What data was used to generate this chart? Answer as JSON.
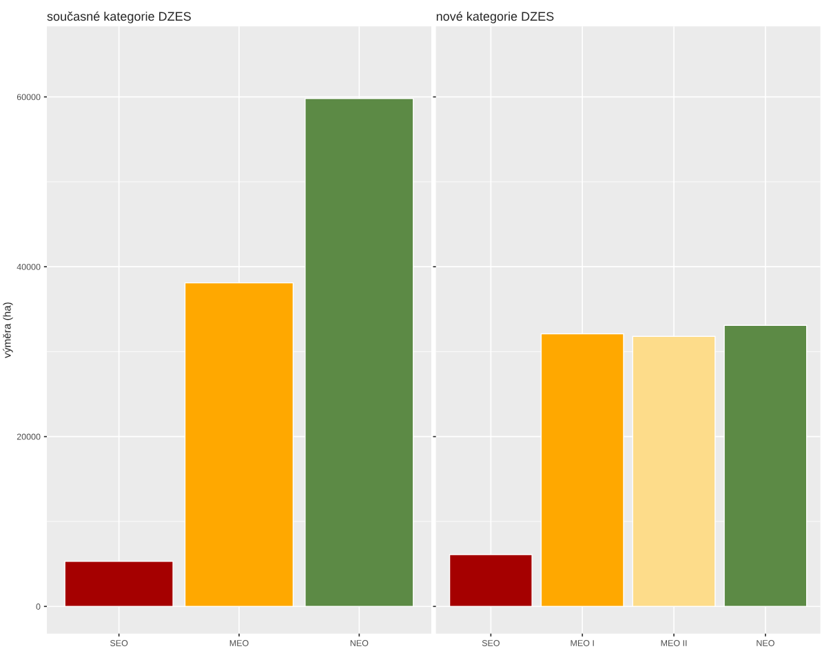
{
  "chart_data": [
    {
      "type": "bar",
      "title": "současné kategorie DZES",
      "ylabel": "výměra (ha)",
      "categories": [
        "SEO",
        "MEO",
        "NEO"
      ],
      "values": [
        5300,
        38100,
        59800
      ],
      "colors": [
        "#a50000",
        "#ffa800",
        "#5c8a45"
      ],
      "ylim": [
        -3200,
        68300
      ],
      "yticks": [
        0,
        20000,
        40000,
        60000
      ],
      "grid": true
    },
    {
      "type": "bar",
      "title": "nové kategorie DZES",
      "categories": [
        "SEO",
        "MEO I",
        "MEO II",
        "NEO"
      ],
      "values": [
        6100,
        32100,
        31800,
        33100
      ],
      "colors": [
        "#a50000",
        "#ffa800",
        "#fddc8a",
        "#5c8a45"
      ],
      "ylim": [
        -3200,
        68300
      ],
      "yticks": [
        0,
        20000,
        40000,
        60000
      ],
      "grid": true,
      "tick_labels": "x"
    }
  ]
}
